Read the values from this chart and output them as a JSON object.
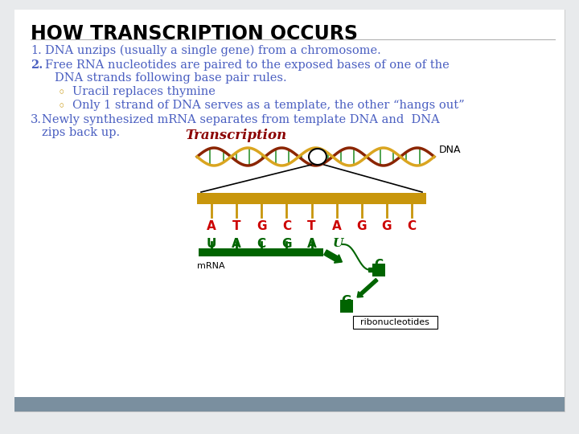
{
  "title": "HOW TRANSCRIPTION OCCURS",
  "bg_color": "#e8eaec",
  "slide_bg": "#ffffff",
  "title_color": "#000000",
  "title_fontsize": 17,
  "body_color": "#4a5fc1",
  "body_fontsize": 10.5,
  "point1": "DNA unzips (usually a single gene) from a chromosome.",
  "point2a": "Free RNA nucleotides are paired to the exposed bases of one of the",
  "point2b": "DNA strands following base pair rules.",
  "bullet1": "Uracil replaces thymine",
  "bullet2": "Only 1 strand of DNA serves as a template, the other “hangs out”",
  "point3a": "Newly synthesized mRNA separates from template DNA and  DNA",
  "point3b": "zips back up.",
  "transcription_label": "Transcription",
  "transcription_color": "#8B0000",
  "dna_label": "DNA",
  "dna_seq_letters": [
    "A",
    "T",
    "G",
    "C",
    "T",
    "A",
    "G",
    "G",
    "C"
  ],
  "dna_seq_color": "#cc0000",
  "mrna_seq_letters": [
    "U",
    "A",
    "C",
    "G",
    "A"
  ],
  "mrna_u_italic": "U",
  "mrna_label": "mRNA",
  "ribo_label": "ribonucleotides",
  "green_color": "#1a6b1a",
  "dark_green": "#006400",
  "gold_color": "#C8960C",
  "footer_color": "#7a8f9f",
  "bullet_color": "#C8960C",
  "helix_brown": "#8B2500",
  "helix_gold": "#DAA520",
  "helix_green": "#228B22"
}
